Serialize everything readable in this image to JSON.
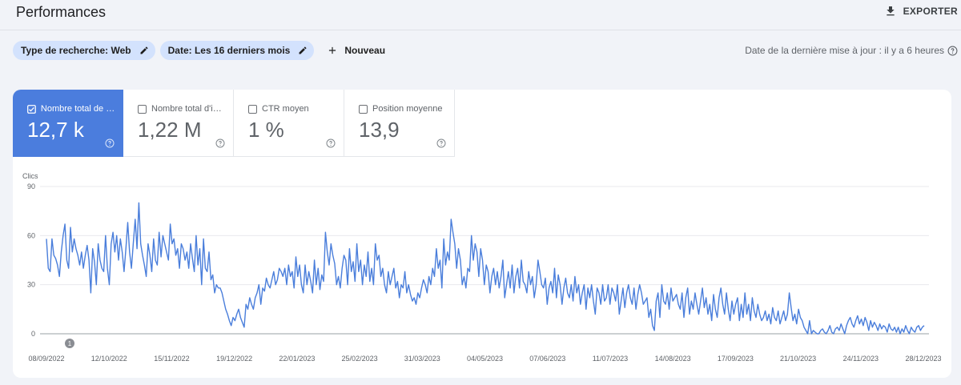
{
  "page": {
    "title": "Performances"
  },
  "toolbar": {
    "export_label": "EXPORTER",
    "export_icon": "download-icon"
  },
  "filters": {
    "search_type": "Type de recherche: Web",
    "date": "Date: Les 16 derniers mois",
    "new_label": "Nouveau"
  },
  "update_info": "Date de la dernière mise à jour : il y a 6 heures",
  "metrics": [
    {
      "label": "Nombre total de clics",
      "label_display": "Nombre total de c...",
      "value": "12,7 k",
      "selected": true
    },
    {
      "label": "Nombre total d'impressions",
      "label_display": "Nombre total d'im...",
      "value": "1,22 M",
      "selected": false
    },
    {
      "label": "CTR moyen",
      "label_display": "CTR moyen",
      "value": "1 %",
      "selected": false
    },
    {
      "label": "Position moyenne",
      "label_display": "Position moyenne",
      "value": "13,9",
      "selected": false
    }
  ],
  "colors": {
    "accent": "#4b7ddd",
    "chip": "#d3e2fd",
    "line": "#4a7edb"
  },
  "chart_data": {
    "type": "line",
    "ylabel": "Clics",
    "ylim": [
      0,
      90
    ],
    "yticks": [
      0,
      30,
      60,
      90
    ],
    "x_tick_labels": [
      "08/09/2022",
      "12/10/2022",
      "15/11/2022",
      "19/12/2022",
      "22/01/2023",
      "25/02/2023",
      "31/03/2023",
      "04/05/2023",
      "07/06/2023",
      "11/07/2023",
      "14/08/2023",
      "17/09/2023",
      "21/10/2023",
      "24/11/2023",
      "28/12/2023"
    ],
    "annotation": "1",
    "series": [
      {
        "name": "Clics",
        "values": [
          58,
          40,
          38,
          58,
          48,
          46,
          42,
          35,
          50,
          60,
          67,
          45,
          40,
          65,
          50,
          58,
          52,
          48,
          42,
          50,
          40,
          48,
          54,
          45,
          25,
          52,
          44,
          30,
          55,
          45,
          40,
          38,
          60,
          40,
          30,
          55,
          62,
          50,
          60,
          45,
          58,
          50,
          38,
          52,
          68,
          50,
          40,
          55,
          70,
          52,
          80,
          55,
          48,
          42,
          35,
          55,
          48,
          38,
          58,
          45,
          42,
          62,
          47,
          60,
          55,
          50,
          45,
          67,
          55,
          58,
          48,
          52,
          40,
          55,
          52,
          45,
          50,
          40,
          55,
          46,
          38,
          60,
          42,
          52,
          30,
          58,
          40,
          38,
          50,
          33,
          36,
          25,
          30,
          28,
          28,
          25,
          20,
          15,
          12,
          8,
          5,
          10,
          8,
          12,
          15,
          10,
          7,
          4,
          18,
          15,
          22,
          18,
          15,
          22,
          25,
          30,
          18,
          28,
          26,
          34,
          30,
          28,
          33,
          38,
          30,
          33,
          40,
          38,
          35,
          40,
          30,
          42,
          35,
          38,
          28,
          47,
          35,
          42,
          30,
          25,
          42,
          30,
          38,
          32,
          25,
          45,
          30,
          40,
          27,
          36,
          32,
          62,
          50,
          42,
          55,
          48,
          43,
          30,
          35,
          28,
          40,
          48,
          45,
          30,
          52,
          38,
          44,
          32,
          55,
          38,
          45,
          30,
          42,
          35,
          50,
          32,
          40,
          30,
          55,
          45,
          48,
          35,
          40,
          30,
          25,
          38,
          30,
          35,
          40,
          28,
          32,
          22,
          30,
          28,
          38,
          25,
          30,
          24,
          20,
          22,
          18,
          25,
          22,
          28,
          33,
          30,
          25,
          35,
          30,
          40,
          35,
          52,
          40,
          45,
          28,
          58,
          42,
          50,
          45,
          70,
          62,
          55,
          40,
          52,
          45,
          30,
          35,
          28,
          40,
          38,
          60,
          45,
          55,
          50,
          35,
          52,
          45,
          30,
          42,
          38,
          25,
          35,
          40,
          30,
          38,
          28,
          35,
          45,
          22,
          30,
          38,
          28,
          42,
          25,
          35,
          40,
          28,
          45,
          32,
          30,
          25,
          38,
          30,
          35,
          22,
          30,
          45,
          38,
          30,
          28,
          34,
          18,
          28,
          32,
          25,
          40,
          22,
          36,
          30,
          18,
          28,
          34,
          25,
          22,
          30,
          20,
          35,
          25,
          30,
          18,
          25,
          30,
          15,
          28,
          22,
          30,
          20,
          12,
          28,
          25,
          18,
          30,
          20,
          22,
          30,
          18,
          28,
          25,
          20,
          30,
          12,
          20,
          28,
          16,
          25,
          30,
          22,
          18,
          28,
          15,
          24,
          30,
          25,
          18,
          20,
          22,
          10,
          15,
          5,
          2,
          20,
          25,
          10,
          30,
          20,
          18,
          25,
          15,
          28,
          20,
          22,
          24,
          18,
          15,
          25,
          10,
          22,
          28,
          12,
          20,
          15,
          25,
          18,
          12,
          20,
          28,
          16,
          22,
          12,
          18,
          8,
          24,
          15,
          10,
          22,
          28,
          18,
          12,
          25,
          15,
          8,
          20,
          12,
          18,
          22,
          8,
          18,
          10,
          25,
          12,
          18,
          8,
          22,
          14,
          10,
          18,
          12,
          8,
          10,
          14,
          8,
          12,
          6,
          16,
          10,
          8,
          14,
          6,
          10,
          14,
          8,
          12,
          25,
          16,
          8,
          12,
          6,
          15,
          10,
          8,
          4,
          2,
          0,
          8,
          0,
          2,
          1,
          0,
          0,
          2,
          3,
          1,
          0,
          2,
          5,
          1,
          0,
          3,
          4,
          2,
          6,
          3,
          0,
          5,
          8,
          10,
          6,
          4,
          8,
          11,
          6,
          9,
          5,
          10,
          7,
          2,
          8,
          4,
          7,
          5,
          2,
          6,
          3,
          5,
          4,
          1,
          6,
          3,
          2,
          4,
          1,
          4,
          0,
          3,
          1,
          5,
          2,
          0,
          4,
          2,
          1,
          4,
          5,
          2,
          4,
          5
        ]
      }
    ]
  }
}
